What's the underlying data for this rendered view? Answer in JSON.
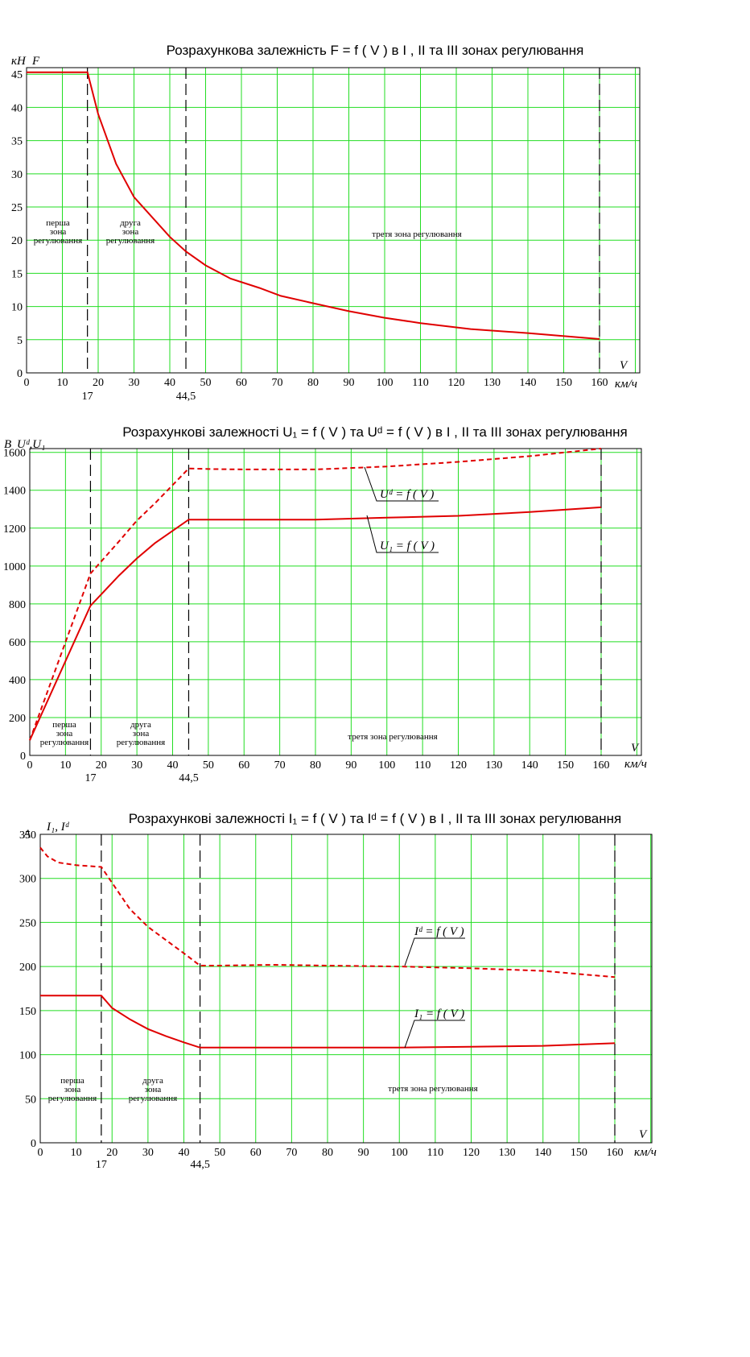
{
  "chart_data": [
    {
      "type": "line",
      "title": "Розрахункова залежність  F = f ( V )  в І , ІІ та ІІІ зонах регулювання",
      "y_unit": "кН",
      "ylabel": "F",
      "xlabel": "V",
      "x_unit": "км/ч",
      "xlim": [
        0,
        170
      ],
      "ylim": [
        0,
        46
      ],
      "x_ticks": [
        "0",
        "10",
        "20",
        "30",
        "40",
        "50",
        "60",
        "70",
        "80",
        "90",
        "100",
        "110",
        "120",
        "130",
        "140",
        "150",
        "160"
      ],
      "y_ticks": [
        "0",
        "5",
        "10",
        "15",
        "20",
        "25",
        "30",
        "35",
        "40",
        "45"
      ],
      "boundary_labels": [
        "17",
        "44,5"
      ],
      "boundaries": [
        17,
        44.5,
        160
      ],
      "zone_labels": [
        "перша зона регулювання",
        "друга зона регулювання",
        "третя зона регулювання"
      ],
      "series": [
        {
          "x": [
            0,
            17,
            20,
            25,
            30,
            35,
            40,
            44.5,
            50,
            57,
            65,
            71,
            80,
            90,
            100,
            110,
            124,
            140,
            160
          ],
          "y": [
            45.3,
            45.3,
            39,
            31.5,
            26.5,
            23.5,
            20.5,
            18.3,
            16.2,
            14.2,
            12.8,
            11.6,
            10.5,
            9.3,
            8.3,
            7.5,
            6.6,
            6.0,
            5.1
          ]
        }
      ]
    },
    {
      "type": "line",
      "title": "Розрахункові  залежності  U₁ = f ( V )  та  Uᵈ = f ( V )   в І , ІІ та ІІІ зонах регулювання",
      "y_unit": "В",
      "ylabel": "Uᵈ,U₁",
      "xlabel": "V",
      "x_unit": "км/ч",
      "xlim": [
        0,
        170
      ],
      "ylim": [
        0,
        1620
      ],
      "x_ticks": [
        "0",
        "10",
        "20",
        "30",
        "40",
        "50",
        "60",
        "70",
        "80",
        "90",
        "100",
        "110",
        "120",
        "130",
        "140",
        "150",
        "160"
      ],
      "y_ticks": [
        "0",
        "200",
        "400",
        "600",
        "800",
        "1000",
        "1200",
        "1400",
        "1600"
      ],
      "boundary_labels": [
        "17",
        "44,5"
      ],
      "boundaries": [
        17,
        44.5,
        160
      ],
      "zone_labels": [
        "перша зона регулювання",
        "друга зона регулювання",
        "третя зона регулювання"
      ],
      "series_labels": [
        "Uᵈ = f ( V )",
        "U₁ = f ( V )"
      ],
      "series": [
        {
          "style": "dashed",
          "x": [
            0,
            17,
            25,
            30,
            35,
            44.5,
            50,
            60,
            80,
            100,
            120,
            140,
            160
          ],
          "y": [
            80,
            960,
            1130,
            1240,
            1330,
            1515,
            1512,
            1510,
            1510,
            1525,
            1550,
            1580,
            1620
          ]
        },
        {
          "style": "solid",
          "x": [
            0,
            17,
            25,
            30,
            35,
            44.5,
            50,
            60,
            80,
            100,
            120,
            140,
            160
          ],
          "y": [
            80,
            790,
            950,
            1040,
            1120,
            1245,
            1245,
            1245,
            1245,
            1255,
            1265,
            1285,
            1310
          ]
        }
      ]
    },
    {
      "type": "line",
      "title": "Розрахункові  залежності  I₁ = f ( V )  та  Iᵈ = f ( V )   в І , ІІ та ІІІ зонах регулювання",
      "y_unit": "А",
      "ylabel": "I₁, Iᵈ",
      "xlabel": "V",
      "x_unit": "км/ч",
      "xlim": [
        0,
        170
      ],
      "ylim": [
        0,
        350
      ],
      "x_ticks": [
        "0",
        "10",
        "20",
        "30",
        "40",
        "50",
        "60",
        "70",
        "80",
        "90",
        "100",
        "110",
        "120",
        "130",
        "140",
        "150",
        "160"
      ],
      "y_ticks": [
        "0",
        "50",
        "100",
        "150",
        "200",
        "250",
        "300",
        "350"
      ],
      "boundary_labels": [
        "17",
        "44,5"
      ],
      "boundaries": [
        17,
        44.5,
        160
      ],
      "zone_labels": [
        "перша зона регулювання",
        "друга зона регулювання",
        "третя зона регулювання"
      ],
      "series_labels": [
        "Iᵈ = f ( V )",
        "I₁ = f ( V )"
      ],
      "series": [
        {
          "style": "dashed",
          "x": [
            0,
            2,
            5,
            10,
            17,
            20,
            25,
            30,
            35,
            40,
            44.5,
            50,
            65,
            80,
            100,
            120,
            140,
            160
          ],
          "y": [
            335,
            325,
            318,
            315,
            313,
            295,
            265,
            245,
            230,
            215,
            201,
            201,
            202,
            201,
            200,
            198,
            195,
            188
          ]
        },
        {
          "style": "solid",
          "x": [
            0,
            17,
            20,
            25,
            30,
            35,
            40,
            44.5,
            50,
            70,
            100,
            120,
            140,
            160
          ],
          "y": [
            167,
            167,
            153,
            140,
            129,
            121,
            114,
            108,
            108,
            108,
            108,
            109,
            110,
            113
          ]
        }
      ]
    }
  ]
}
